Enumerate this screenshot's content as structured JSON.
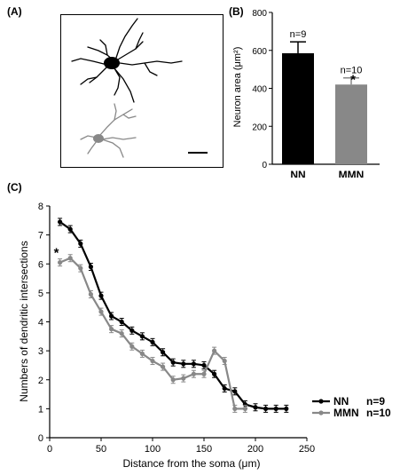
{
  "panel_labels": {
    "a": "(A)",
    "b": "(B)",
    "c": "(C)"
  },
  "colors": {
    "nn": "#000000",
    "mmn": "#888888"
  },
  "chart_data": [
    {
      "panel": "(B)",
      "type": "bar",
      "categories": [
        "NN",
        "MMN"
      ],
      "values": [
        585,
        420
      ],
      "errors": [
        60,
        35
      ],
      "annotations": [
        "n=9",
        "n=10"
      ],
      "significance": [
        "",
        "*"
      ],
      "ylabel": "Neuron area (μm²)",
      "xlabel": "",
      "ylim": [
        0,
        800
      ],
      "yticks": [
        0,
        200,
        400,
        600,
        800
      ],
      "grid": false
    },
    {
      "panel": "(C)",
      "type": "line",
      "xlabel": "Distance from the soma (μm)",
      "ylabel": "Numbers of dendritic intersections",
      "xlim": [
        0,
        250
      ],
      "ylim": [
        0,
        8
      ],
      "xticks": [
        0,
        50,
        100,
        150,
        200,
        250
      ],
      "yticks": [
        0,
        1,
        2,
        3,
        4,
        5,
        6,
        7,
        8
      ],
      "grid": false,
      "legend_position": "right",
      "significance_marker": "*",
      "series": [
        {
          "name": "NN",
          "n_label": "n=9",
          "x": [
            10,
            20,
            30,
            40,
            50,
            60,
            70,
            80,
            90,
            100,
            110,
            120,
            130,
            140,
            150,
            160,
            170,
            180,
            190,
            200,
            210,
            220,
            230
          ],
          "y": [
            7.45,
            7.2,
            6.7,
            5.9,
            4.9,
            4.2,
            4.0,
            3.7,
            3.5,
            3.3,
            2.95,
            2.6,
            2.55,
            2.55,
            2.5,
            2.2,
            1.7,
            1.6,
            1.15,
            1.05,
            1.0,
            1.0,
            1.0
          ]
        },
        {
          "name": "MMN",
          "n_label": "n=10",
          "x": [
            10,
            20,
            30,
            40,
            50,
            60,
            70,
            80,
            90,
            100,
            110,
            120,
            130,
            140,
            150,
            160,
            170,
            180,
            190
          ],
          "y": [
            6.05,
            6.2,
            5.85,
            4.95,
            4.35,
            3.75,
            3.6,
            3.15,
            2.9,
            2.65,
            2.45,
            2.0,
            2.05,
            2.2,
            2.2,
            3.0,
            2.65,
            1.0,
            1.0
          ]
        }
      ]
    }
  ]
}
